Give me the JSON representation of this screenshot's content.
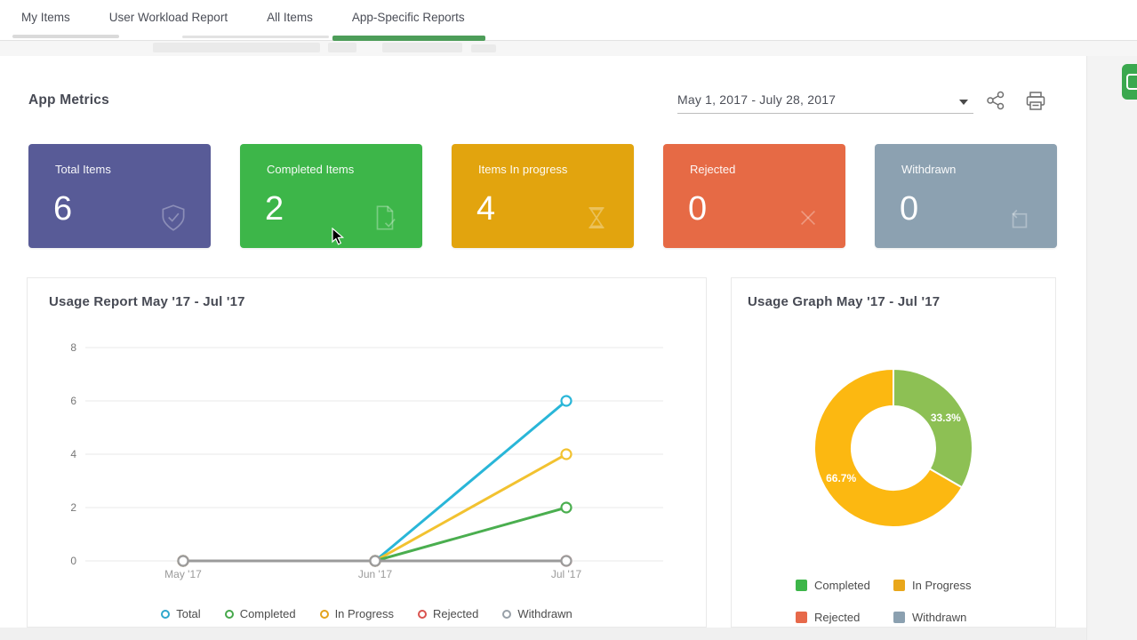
{
  "tab_bar": {
    "tabs": [
      {
        "label": "My Items",
        "active": false
      },
      {
        "label": "User Workload Report",
        "active": false
      },
      {
        "label": "All Items",
        "active": false
      },
      {
        "label": "App-Specific Reports",
        "active": true
      }
    ],
    "active_underline_color": "#4d9d59"
  },
  "toolbar": {
    "title": "App Metrics",
    "date_range": "May 1, 2017 - July 28, 2017"
  },
  "edge_button": {
    "color": "#3aa84e"
  },
  "metric_cards": [
    {
      "label": "Total Items",
      "value": "6",
      "color": "#585b97",
      "icon": "shield-check-icon"
    },
    {
      "label": "Completed Items",
      "value": "2",
      "color": "#3db649",
      "icon": "document-check-icon"
    },
    {
      "label": "Items In progress",
      "value": "4",
      "color": "#e2a40e",
      "icon": "hourglass-icon"
    },
    {
      "label": "Rejected",
      "value": "0",
      "color": "#e66a45",
      "icon": "close-x-icon"
    },
    {
      "label": "Withdrawn",
      "value": "0",
      "color": "#8ca1b1",
      "icon": "return-box-icon"
    }
  ],
  "chart_data": [
    {
      "type": "line",
      "title": "Usage Report May '17 - Jul '17",
      "x": [
        "May '17",
        "Jun '17",
        "Jul '17"
      ],
      "yticks": [
        0,
        2,
        4,
        6,
        8
      ],
      "ylim": [
        0,
        8
      ],
      "grid": true,
      "legend_position": "bottom",
      "series": [
        {
          "name": "Total",
          "values": [
            0,
            0,
            6
          ],
          "color": "#29b6d8",
          "legend_color": "#2fa7cc"
        },
        {
          "name": "Completed",
          "values": [
            0,
            0,
            2
          ],
          "color": "#4aae4f",
          "legend_color": "#46a84b"
        },
        {
          "name": "In Progress",
          "values": [
            0,
            0,
            4
          ],
          "color": "#f2c230",
          "legend_color": "#e3a31c"
        },
        {
          "name": "Rejected",
          "values": [
            0,
            0,
            0
          ],
          "color": "#d9534f",
          "legend_color": "#d9534f"
        },
        {
          "name": "Withdrawn",
          "values": [
            0,
            0,
            0
          ],
          "color": "#9b9b9b",
          "legend_color": "#98a0a8"
        }
      ]
    },
    {
      "type": "pie",
      "title": "Usage Graph May '17 - Jul '17",
      "labels": [
        "Completed",
        "In Progress"
      ],
      "values": [
        33.3,
        66.7
      ],
      "data_labels": [
        "33.3%",
        "66.7%"
      ],
      "slice_colors": [
        "#8dc054",
        "#fcb811"
      ],
      "donut": true,
      "legend": [
        {
          "label": "Completed",
          "color": "#3db649"
        },
        {
          "label": "In Progress",
          "color": "#e9a71b"
        },
        {
          "label": "Rejected",
          "color": "#e7694a"
        },
        {
          "label": "Withdrawn",
          "color": "#8ba0b0"
        }
      ]
    }
  ]
}
